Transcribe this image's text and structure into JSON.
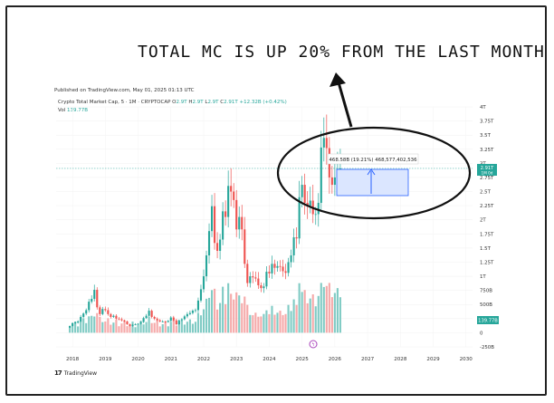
{
  "headline": "TOTAL MC IS UP 20% FROM THE LAST MONTH",
  "published": "Published on TradingView.com, May 01, 2025 01:13 UTC",
  "legend": {
    "title": "Crypto Total Market Cap, 5 · 1M · CRYPTOCAP",
    "open_label": "O",
    "open": "2.9T",
    "high_label": "H",
    "high": "2.9T",
    "low_label": "L",
    "low": "2.9T",
    "close_label": "C",
    "close": "2.91T",
    "change": "+12.32B (+0.42%)"
  },
  "volume": {
    "label": "Vol",
    "value": "139.77B"
  },
  "price_badge": {
    "value": "2.91T",
    "sub": "1M 0d"
  },
  "volume_badge": "139.77B",
  "measure_label": "468.58B (19.21%) 468,577,402,536",
  "branding": "TradingView",
  "colors": {
    "up": "#26a69a",
    "down": "#ef5350",
    "up_vol": "#80cbc4",
    "down_vol": "#f5a9a9",
    "measure": "#2962ff",
    "measure_fill": "#dbe6ff"
  },
  "chart_data": {
    "type": "candlestick",
    "title": "Crypto Total Market Cap",
    "interval": "1M",
    "x_ticks": [
      "2018",
      "2019",
      "2020",
      "2021",
      "2022",
      "2023",
      "2024",
      "2025",
      "2026",
      "2027",
      "2028",
      "2029",
      "2030"
    ],
    "y_ticks": [
      "4T",
      "3.75T",
      "3.5T",
      "3.25T",
      "3T",
      "2.75T",
      "2.5T",
      "2.25T",
      "2T",
      "1.75T",
      "1.5T",
      "1.25T",
      "1T",
      "750B",
      "500B",
      "250B",
      "0",
      "-250B"
    ],
    "y_range_trillions": [
      -0.25,
      4.0
    ],
    "x_range_years": [
      2017.5,
      2030.2
    ],
    "last_close": "2.91T",
    "closes_trillions": [
      0.12,
      0.17,
      0.18,
      0.2,
      0.28,
      0.34,
      0.4,
      0.55,
      0.6,
      0.76,
      0.45,
      0.33,
      0.42,
      0.4,
      0.33,
      0.28,
      0.3,
      0.25,
      0.24,
      0.22,
      0.2,
      0.15,
      0.12,
      0.14,
      0.15,
      0.16,
      0.19,
      0.26,
      0.3,
      0.39,
      0.28,
      0.25,
      0.22,
      0.2,
      0.2,
      0.19,
      0.21,
      0.27,
      0.22,
      0.15,
      0.22,
      0.24,
      0.29,
      0.33,
      0.35,
      0.39,
      0.4,
      0.57,
      0.77,
      1.0,
      1.37,
      1.8,
      2.24,
      1.59,
      1.45,
      1.65,
      2.15,
      2.05,
      2.6,
      2.5,
      2.35,
      1.83,
      2.05,
      1.83,
      1.22,
      0.88,
      1.0,
      0.98,
      0.96,
      0.84,
      0.79,
      0.82,
      1.08,
      1.05,
      1.22,
      1.15,
      1.18,
      1.17,
      1.09,
      1.06,
      1.25,
      1.37,
      1.69,
      1.67,
      2.4,
      2.62,
      2.3,
      2.25,
      2.34,
      2.1,
      2.1,
      2.3,
      3.28,
      3.45,
      3.27,
      2.75,
      2.62,
      2.75,
      2.9,
      2.91
    ],
    "annotation": {
      "text": "468.58B (19.21%) 468,577,402,536",
      "from": "2.44T",
      "to": "2.91T"
    }
  }
}
